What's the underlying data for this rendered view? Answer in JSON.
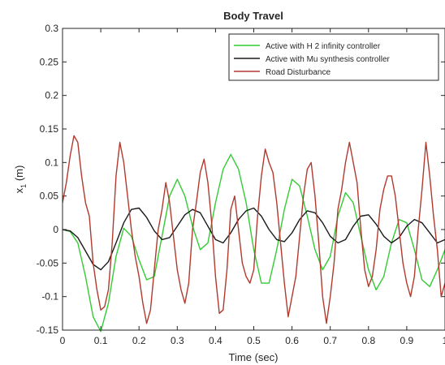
{
  "chart_data": {
    "type": "line",
    "title": "Body Travel",
    "xlabel": "Time (sec)",
    "ylabel": "x",
    "ylabel_subscript": "1",
    "ylabel_unit": " (m)",
    "xlim": [
      0,
      1
    ],
    "ylim": [
      -0.15,
      0.3
    ],
    "xticks": [
      0,
      0.1,
      0.2,
      0.3,
      0.4,
      0.5,
      0.6,
      0.7,
      0.8,
      0.9,
      1
    ],
    "xtick_labels": [
      "0",
      "0.1",
      "0.2",
      "0.3",
      "0.4",
      "0.5",
      "0.6",
      "0.7",
      "0.8",
      "0.9",
      "1"
    ],
    "yticks": [
      -0.15,
      -0.1,
      -0.05,
      0,
      0.05,
      0.1,
      0.15,
      0.2,
      0.25,
      0.3
    ],
    "ytick_labels": [
      "-0.15",
      "-0.1",
      "-0.05",
      "0",
      "0.05",
      "0.1",
      "0.15",
      "0.2",
      "0.25",
      "0.3"
    ],
    "grid": false,
    "legend_position": "top-right",
    "series": [
      {
        "name": "Active with H 2 infinity controller",
        "color": "#33cc33",
        "x": [
          0,
          0.02,
          0.04,
          0.06,
          0.08,
          0.1,
          0.12,
          0.14,
          0.16,
          0.18,
          0.2,
          0.22,
          0.24,
          0.26,
          0.28,
          0.3,
          0.32,
          0.34,
          0.36,
          0.38,
          0.4,
          0.42,
          0.44,
          0.46,
          0.48,
          0.5,
          0.52,
          0.54,
          0.56,
          0.58,
          0.6,
          0.62,
          0.64,
          0.66,
          0.68,
          0.7,
          0.72,
          0.74,
          0.76,
          0.78,
          0.8,
          0.82,
          0.84,
          0.86,
          0.88,
          0.9,
          0.92,
          0.94,
          0.96,
          0.98,
          1
        ],
        "y": [
          0,
          -0.003,
          -0.02,
          -0.07,
          -0.13,
          -0.152,
          -0.11,
          -0.04,
          0.002,
          -0.01,
          -0.045,
          -0.075,
          -0.07,
          -0.01,
          0.05,
          0.075,
          0.05,
          0.005,
          -0.03,
          -0.02,
          0.04,
          0.09,
          0.112,
          0.09,
          0.04,
          -0.03,
          -0.08,
          -0.08,
          -0.03,
          0.03,
          0.075,
          0.065,
          0.02,
          -0.03,
          -0.06,
          -0.04,
          0.02,
          0.055,
          0.04,
          -0.01,
          -0.06,
          -0.09,
          -0.07,
          -0.02,
          0.015,
          0.01,
          -0.03,
          -0.075,
          -0.085,
          -0.06,
          -0.03
        ]
      },
      {
        "name": "Active with Mu synthesis controller",
        "color": "#1a1a1a",
        "x": [
          0,
          0.02,
          0.04,
          0.06,
          0.08,
          0.1,
          0.12,
          0.14,
          0.16,
          0.18,
          0.2,
          0.22,
          0.24,
          0.26,
          0.28,
          0.3,
          0.32,
          0.34,
          0.36,
          0.38,
          0.4,
          0.42,
          0.44,
          0.46,
          0.48,
          0.5,
          0.52,
          0.54,
          0.56,
          0.58,
          0.6,
          0.62,
          0.64,
          0.66,
          0.68,
          0.7,
          0.72,
          0.74,
          0.76,
          0.78,
          0.8,
          0.82,
          0.84,
          0.86,
          0.88,
          0.9,
          0.92,
          0.94,
          0.96,
          0.98,
          1
        ],
        "y": [
          0,
          -0.002,
          -0.012,
          -0.032,
          -0.052,
          -0.06,
          -0.048,
          -0.02,
          0.01,
          0.03,
          0.032,
          0.018,
          -0.002,
          -0.015,
          -0.012,
          0.005,
          0.022,
          0.03,
          0.025,
          0.005,
          -0.015,
          -0.02,
          -0.005,
          0.015,
          0.028,
          0.032,
          0.02,
          0.0,
          -0.015,
          -0.018,
          -0.005,
          0.015,
          0.028,
          0.025,
          0.01,
          -0.01,
          -0.02,
          -0.015,
          0.005,
          0.02,
          0.022,
          0.008,
          -0.01,
          -0.02,
          -0.012,
          0.005,
          0.015,
          0.01,
          -0.005,
          -0.02,
          -0.015
        ]
      },
      {
        "name": "Road Disturbance",
        "color": "#b03a2e",
        "x": [
          0,
          0.01,
          0.02,
          0.03,
          0.04,
          0.05,
          0.06,
          0.07,
          0.08,
          0.09,
          0.1,
          0.11,
          0.12,
          0.13,
          0.14,
          0.15,
          0.16,
          0.17,
          0.18,
          0.19,
          0.2,
          0.21,
          0.22,
          0.23,
          0.24,
          0.25,
          0.26,
          0.27,
          0.28,
          0.29,
          0.3,
          0.31,
          0.32,
          0.33,
          0.34,
          0.35,
          0.36,
          0.37,
          0.38,
          0.39,
          0.4,
          0.41,
          0.42,
          0.43,
          0.44,
          0.45,
          0.46,
          0.47,
          0.48,
          0.49,
          0.5,
          0.51,
          0.52,
          0.53,
          0.54,
          0.55,
          0.56,
          0.57,
          0.58,
          0.59,
          0.6,
          0.61,
          0.62,
          0.63,
          0.64,
          0.65,
          0.66,
          0.67,
          0.68,
          0.69,
          0.7,
          0.71,
          0.72,
          0.73,
          0.74,
          0.75,
          0.76,
          0.77,
          0.78,
          0.79,
          0.8,
          0.81,
          0.82,
          0.83,
          0.84,
          0.85,
          0.86,
          0.87,
          0.88,
          0.89,
          0.9,
          0.91,
          0.92,
          0.93,
          0.94,
          0.95,
          0.96,
          0.97,
          0.98,
          0.99,
          1
        ],
        "y": [
          0.04,
          0.07,
          0.11,
          0.14,
          0.13,
          0.08,
          0.04,
          0.02,
          -0.05,
          -0.09,
          -0.12,
          -0.115,
          -0.09,
          -0.02,
          0.08,
          0.13,
          0.1,
          0.05,
          0.0,
          -0.04,
          -0.07,
          -0.11,
          -0.14,
          -0.12,
          -0.06,
          0.0,
          0.03,
          0.07,
          0.04,
          -0.01,
          -0.06,
          -0.09,
          -0.11,
          -0.08,
          0.0,
          0.04,
          0.085,
          0.105,
          0.07,
          0.01,
          -0.07,
          -0.125,
          -0.12,
          -0.06,
          0.03,
          0.05,
          0.0,
          -0.05,
          -0.07,
          -0.08,
          -0.06,
          0.02,
          0.08,
          0.12,
          0.1,
          0.085,
          0.04,
          -0.02,
          -0.08,
          -0.13,
          -0.1,
          -0.07,
          -0.01,
          0.05,
          0.09,
          0.1,
          0.05,
          -0.02,
          -0.1,
          -0.14,
          -0.1,
          -0.05,
          0.03,
          0.06,
          0.1,
          0.13,
          0.1,
          0.07,
          0.0,
          -0.06,
          -0.085,
          -0.07,
          -0.03,
          0.03,
          0.06,
          0.08,
          0.08,
          0.05,
          0.0,
          -0.05,
          -0.08,
          -0.1,
          -0.07,
          0.0,
          0.06,
          0.13,
          0.08,
          0.02,
          -0.03,
          -0.1,
          -0.08
        ]
      }
    ]
  }
}
